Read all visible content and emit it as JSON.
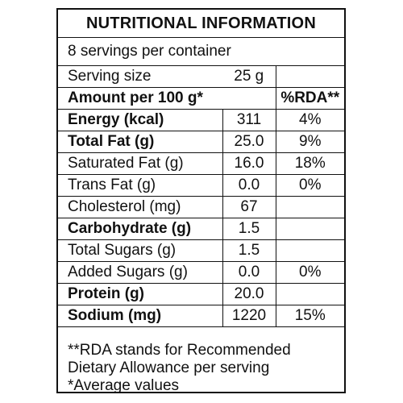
{
  "label": {
    "title": "NUTRITIONAL INFORMATION",
    "servings": "8 servings per container",
    "serving_size": {
      "label": "Serving size",
      "value": "25 g"
    },
    "amount_header": {
      "label": "Amount per 100 g*",
      "rda": "%RDA**"
    },
    "rows": [
      {
        "name": "Energy (kcal)",
        "value": "311",
        "rda": "4%"
      },
      {
        "name": "Total Fat (g)",
        "value": "25.0",
        "rda": "9%"
      },
      {
        "name": "Saturated Fat (g)",
        "value": "16.0",
        "rda": "18%"
      },
      {
        "name": "Trans Fat (g)",
        "value": "0.0",
        "rda": "0%"
      },
      {
        "name": "Cholesterol (mg)",
        "value": "67",
        "rda": ""
      },
      {
        "name": "Carbohydrate (g)",
        "value": "1.5",
        "rda": ""
      },
      {
        "name": "Total Sugars (g)",
        "value": "1.5",
        "rda": ""
      },
      {
        "name": "Added Sugars (g)",
        "value": "0.0",
        "rda": "0%"
      },
      {
        "name": "Protein (g)",
        "value": "20.0",
        "rda": ""
      },
      {
        "name": "Sodium (mg)",
        "value": "1220",
        "rda": "15%"
      }
    ],
    "footnotes": [
      "**RDA stands for Recommended",
      "Dietary Allowance per serving",
      "*Average values"
    ]
  }
}
